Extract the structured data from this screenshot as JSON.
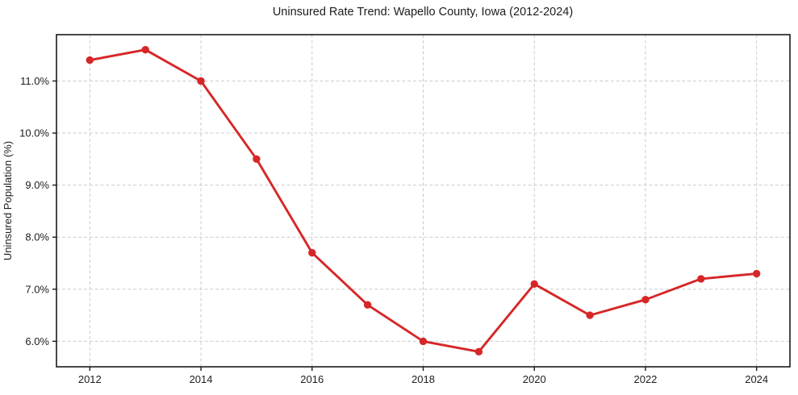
{
  "chart_data": {
    "type": "line",
    "title": "Uninsured Rate Trend: Wapello County, Iowa (2012-2024)",
    "xlabel": "",
    "ylabel": "Uninsured Population (%)",
    "x": [
      2012,
      2013,
      2014,
      2015,
      2016,
      2017,
      2018,
      2019,
      2020,
      2021,
      2022,
      2023,
      2024
    ],
    "series": [
      {
        "name": "Uninsured rate",
        "values": [
          11.4,
          11.6,
          11.0,
          9.5,
          7.7,
          6.7,
          6.0,
          5.8,
          7.1,
          6.5,
          6.8,
          7.2,
          7.3
        ],
        "color": "#d62728",
        "marker": "circle"
      }
    ],
    "xlim": [
      2011.4,
      2024.6
    ],
    "ylim": [
      5.51,
      11.89
    ],
    "xticks": {
      "values": [
        2012,
        2014,
        2016,
        2018,
        2020,
        2022,
        2024
      ],
      "labels": [
        "2012",
        "2014",
        "2016",
        "2018",
        "2020",
        "2022",
        "2024"
      ]
    },
    "yticks": {
      "values": [
        6.0,
        7.0,
        8.0,
        9.0,
        10.0,
        11.0
      ],
      "labels": [
        "6.0%",
        "7.0%",
        "8.0%",
        "9.0%",
        "10.0%",
        "11.0%"
      ]
    },
    "grid": {
      "show": true,
      "color": "#cbcbcb",
      "style": "dashed"
    },
    "spine_color": "#1a1a1a",
    "background": "#ffffff",
    "legend": null
  }
}
